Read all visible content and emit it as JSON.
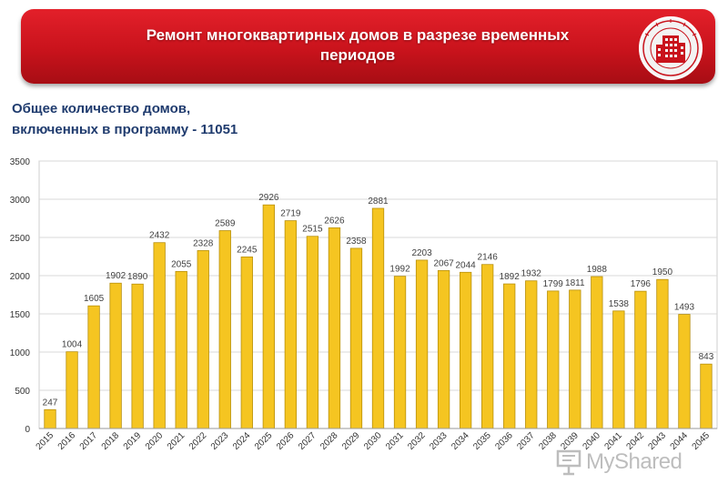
{
  "header": {
    "title": "Ремонт многоквартирных домов в разрезе временных\nпериодов",
    "colors": {
      "banner": "#d4161f",
      "title_text": "#ffffff"
    },
    "emblem_icon": "building-seal-icon"
  },
  "subtitle": "Общее количество домов,\nвключенных в программу - 11051",
  "watermark": {
    "text": "MyShared",
    "icon": "presentation-icon"
  },
  "chart_data": {
    "type": "bar",
    "categories": [
      "2015",
      "2016",
      "2017",
      "2018",
      "2019",
      "2020",
      "2021",
      "2022",
      "2023",
      "2024",
      "2025",
      "2026",
      "2027",
      "2028",
      "2029",
      "2030",
      "2031",
      "2032",
      "2033",
      "2034",
      "2035",
      "2036",
      "2037",
      "2038",
      "2039",
      "2040",
      "2041",
      "2042",
      "2043",
      "2044",
      "2045"
    ],
    "values": [
      247,
      1004,
      1605,
      1902,
      1890,
      2432,
      2055,
      2328,
      2589,
      2245,
      2926,
      2719,
      2515,
      2626,
      2358,
      2881,
      1992,
      2203,
      2067,
      2044,
      2146,
      1892,
      1932,
      1799,
      1811,
      1988,
      1538,
      1796,
      1950,
      1493,
      843
    ],
    "y_ticks": [
      0,
      500,
      1000,
      1500,
      2000,
      2500,
      3000,
      3500
    ],
    "ylim": [
      0,
      3500
    ],
    "grid": true,
    "legend": "none",
    "colors": {
      "bar_fill": "#f5c521",
      "bar_stroke": "#b8900c",
      "grid": "#d9d9d9",
      "axis_text": "#333333",
      "label_text": "#404040"
    }
  }
}
